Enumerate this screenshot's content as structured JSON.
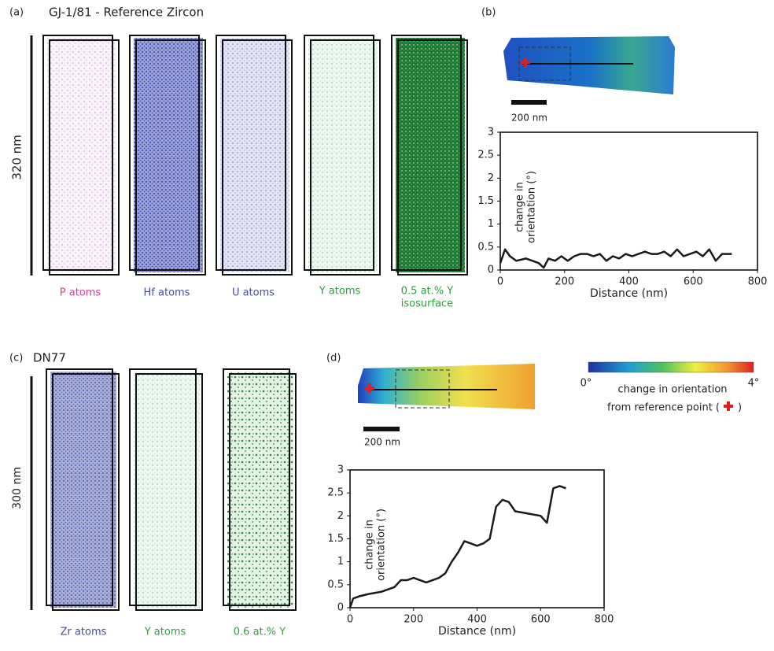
{
  "panel_a": {
    "label": "(a)",
    "title": "GJ-1/81 - Reference Zircon",
    "scale": "320 nm",
    "species": [
      "P atoms",
      "Hf atoms",
      "U atoms",
      "Y atoms"
    ],
    "isosurface": [
      "0.5 at.% Y",
      "isosurface"
    ]
  },
  "panel_b": {
    "label": "(b)",
    "scale": "200 nm"
  },
  "panel_c": {
    "label": "(c)",
    "title": "DN77",
    "scale": "300 nm",
    "species": [
      "Zr atoms",
      "Y atoms"
    ],
    "isosurface": [
      "0.6 at.% Y"
    ]
  },
  "panel_d": {
    "label": "(d)",
    "scale": "200 nm"
  },
  "colorbar": {
    "min": "0°",
    "max": "4°",
    "label": [
      "change in orientation",
      "from reference point ("
    ],
    "close": ")"
  },
  "chart_data": [
    {
      "type": "line",
      "xlabel": "Distance (nm)",
      "ylabel": [
        "change in",
        "orientation (°)"
      ],
      "color": "#1a1a1a",
      "x": [
        0,
        15,
        30,
        50,
        80,
        100,
        120,
        135,
        150,
        170,
        190,
        210,
        230,
        250,
        270,
        290,
        310,
        330,
        350,
        370,
        390,
        410,
        430,
        450,
        470,
        490,
        510,
        530,
        550,
        570,
        590,
        610,
        630,
        650,
        670,
        690,
        710,
        720
      ],
      "values": [
        0.15,
        0.45,
        0.3,
        0.2,
        0.25,
        0.2,
        0.15,
        0.05,
        0.25,
        0.2,
        0.3,
        0.2,
        0.3,
        0.35,
        0.35,
        0.3,
        0.35,
        0.2,
        0.3,
        0.25,
        0.35,
        0.3,
        0.35,
        0.4,
        0.35,
        0.35,
        0.4,
        0.3,
        0.45,
        0.3,
        0.35,
        0.4,
        0.3,
        0.45,
        0.2,
        0.35,
        0.35,
        0.35
      ],
      "xlim": [
        0,
        800
      ],
      "xticks": [
        0,
        200,
        400,
        600,
        800
      ],
      "ylim": [
        0,
        3
      ],
      "yticks": [
        0,
        0.5,
        1,
        1.5,
        2,
        2.5,
        3
      ]
    },
    {
      "type": "line",
      "xlabel": "Distance (nm)",
      "ylabel": [
        "change in",
        "orientation (°)"
      ],
      "color": "#1a1a1a",
      "x": [
        0,
        10,
        30,
        60,
        100,
        140,
        160,
        180,
        200,
        240,
        280,
        300,
        320,
        340,
        360,
        380,
        400,
        420,
        440,
        460,
        480,
        500,
        520,
        560,
        600,
        620,
        640,
        660,
        680
      ],
      "values": [
        0,
        0.2,
        0.25,
        0.3,
        0.35,
        0.45,
        0.6,
        0.6,
        0.65,
        0.55,
        0.65,
        0.75,
        1.0,
        1.2,
        1.45,
        1.4,
        1.35,
        1.4,
        1.5,
        2.2,
        2.35,
        2.3,
        2.1,
        2.05,
        2.0,
        1.85,
        2.6,
        2.65,
        2.6
      ],
      "xlim": [
        0,
        800
      ],
      "xticks": [
        0,
        200,
        400,
        600,
        800
      ],
      "ylim": [
        0,
        3
      ],
      "yticks": [
        0,
        0.5,
        1,
        1.5,
        2,
        2.5,
        3
      ]
    }
  ]
}
